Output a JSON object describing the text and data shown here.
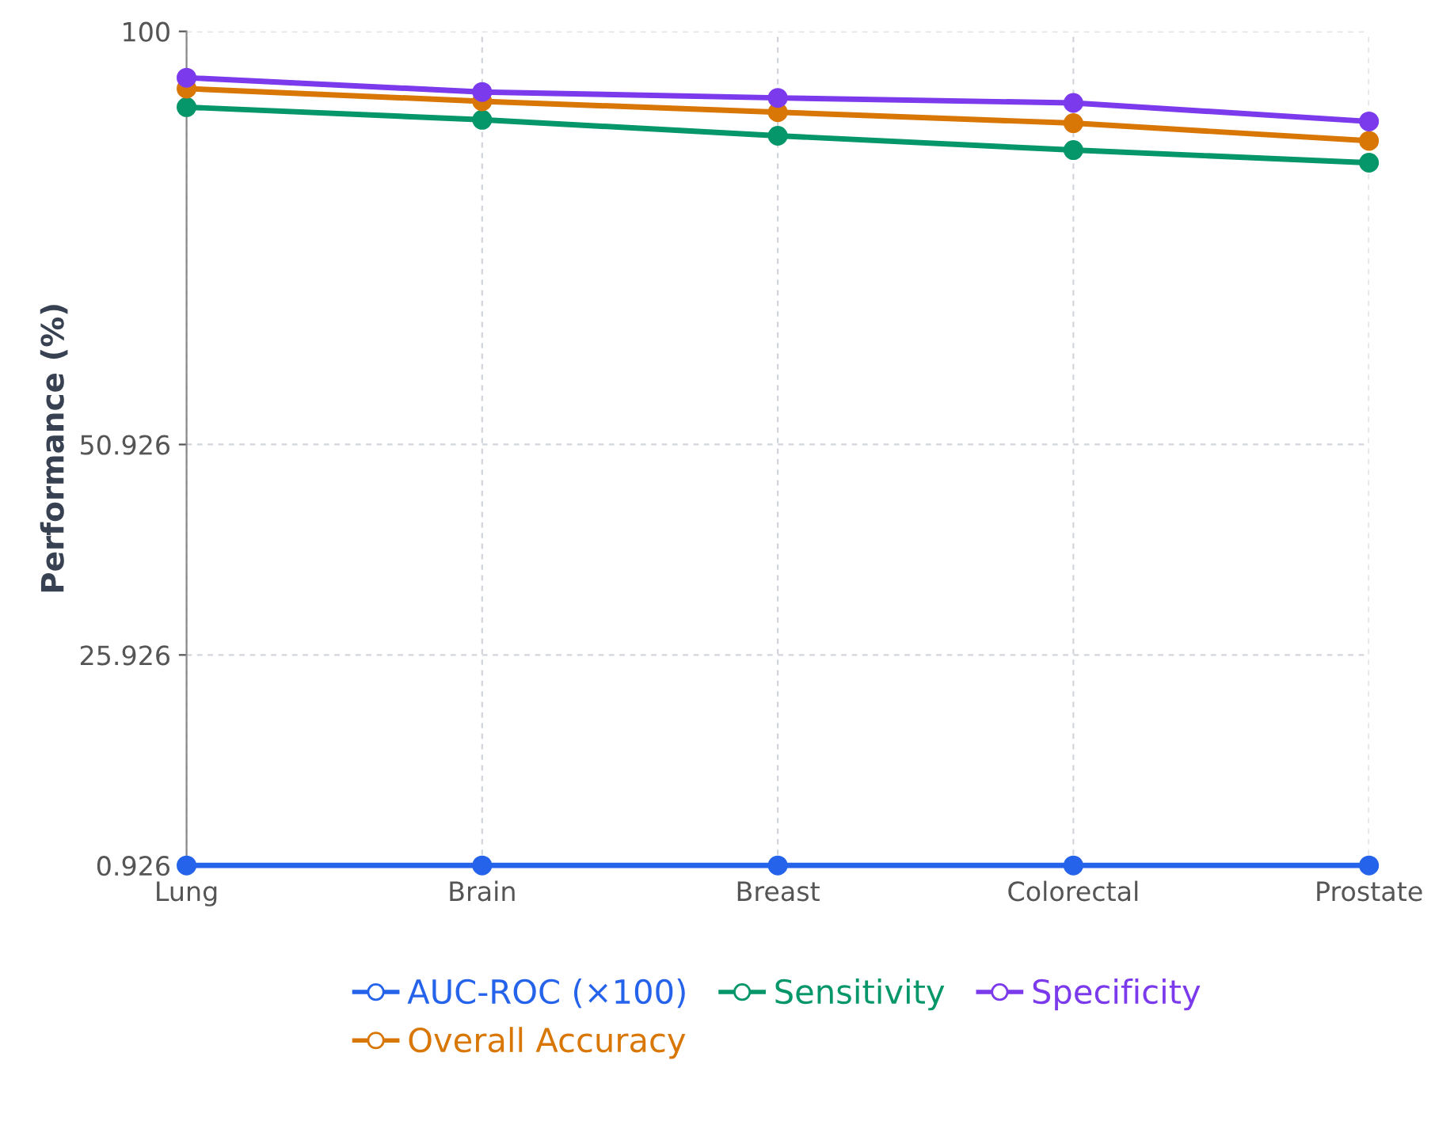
{
  "chart_data": {
    "type": "line",
    "ylabel": "Performance (%)",
    "categories": [
      "Lung",
      "Brain",
      "Breast",
      "Colorectal",
      "Prostate"
    ],
    "series": [
      {
        "name": "AUC-ROC (×100)",
        "color": "#2563eb",
        "values": [
          0.926,
          0.926,
          0.926,
          0.926,
          0.926
        ]
      },
      {
        "name": "Sensitivity",
        "color": "#059669",
        "values": [
          91.0,
          89.5,
          87.6,
          85.9,
          84.4
        ]
      },
      {
        "name": "Specificity",
        "color": "#7c3aed",
        "values": [
          94.5,
          92.8,
          92.1,
          91.5,
          89.3
        ]
      },
      {
        "name": "Overall Accuracy",
        "color": "#d97706",
        "values": [
          93.2,
          91.7,
          90.4,
          89.1,
          87.0
        ]
      }
    ],
    "ylim": [
      0.926,
      100
    ],
    "yticks": [
      0.926,
      25.926,
      50.926,
      100
    ],
    "grid": true,
    "legend": "bottom",
    "marker": "circle",
    "line_style": "solid"
  }
}
